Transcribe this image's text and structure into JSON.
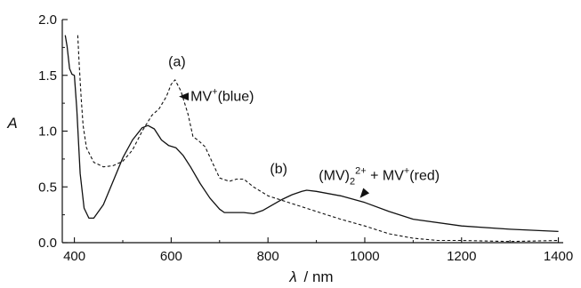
{
  "chart_data": {
    "type": "line",
    "xlabel_symbol": "λ",
    "xlabel_unit": "/ nm",
    "ylabel": "A",
    "xlim": [
      375,
      1410
    ],
    "ylim": [
      0,
      2.0
    ],
    "x_ticks": [
      400,
      600,
      800,
      1000,
      1200,
      1400
    ],
    "y_ticks": [
      0.0,
      0.5,
      1.0,
      1.5,
      2.0
    ],
    "grid": false,
    "series": [
      {
        "key": "b",
        "style": "solid",
        "points": [
          [
            381,
            1.86
          ],
          [
            385,
            1.76
          ],
          [
            390,
            1.56
          ],
          [
            395,
            1.51
          ],
          [
            400,
            1.5
          ],
          [
            405,
            1.2
          ],
          [
            412,
            0.62
          ],
          [
            420,
            0.31
          ],
          [
            430,
            0.22
          ],
          [
            440,
            0.22
          ],
          [
            460,
            0.34
          ],
          [
            480,
            0.55
          ],
          [
            500,
            0.76
          ],
          [
            520,
            0.92
          ],
          [
            540,
            1.03
          ],
          [
            552,
            1.05
          ],
          [
            565,
            1.02
          ],
          [
            580,
            0.92
          ],
          [
            595,
            0.87
          ],
          [
            610,
            0.85
          ],
          [
            625,
            0.78
          ],
          [
            640,
            0.68
          ],
          [
            660,
            0.53
          ],
          [
            680,
            0.4
          ],
          [
            700,
            0.3
          ],
          [
            710,
            0.27
          ],
          [
            730,
            0.27
          ],
          [
            750,
            0.27
          ],
          [
            770,
            0.26
          ],
          [
            790,
            0.29
          ],
          [
            810,
            0.34
          ],
          [
            830,
            0.39
          ],
          [
            850,
            0.43
          ],
          [
            870,
            0.46
          ],
          [
            880,
            0.47
          ],
          [
            900,
            0.46
          ],
          [
            950,
            0.42
          ],
          [
            1000,
            0.36
          ],
          [
            1050,
            0.28
          ],
          [
            1100,
            0.21
          ],
          [
            1200,
            0.15
          ],
          [
            1300,
            0.12
          ],
          [
            1400,
            0.1
          ]
        ]
      },
      {
        "key": "a",
        "style": "dashed",
        "points": [
          [
            407,
            1.86
          ],
          [
            410,
            1.6
          ],
          [
            414,
            1.3
          ],
          [
            418,
            1.05
          ],
          [
            425,
            0.85
          ],
          [
            440,
            0.72
          ],
          [
            460,
            0.68
          ],
          [
            480,
            0.69
          ],
          [
            500,
            0.73
          ],
          [
            520,
            0.83
          ],
          [
            540,
            1.0
          ],
          [
            560,
            1.14
          ],
          [
            575,
            1.2
          ],
          [
            590,
            1.31
          ],
          [
            600,
            1.42
          ],
          [
            608,
            1.46
          ],
          [
            620,
            1.36
          ],
          [
            635,
            1.15
          ],
          [
            645,
            0.95
          ],
          [
            655,
            0.92
          ],
          [
            670,
            0.86
          ],
          [
            685,
            0.72
          ],
          [
            700,
            0.58
          ],
          [
            720,
            0.55
          ],
          [
            735,
            0.57
          ],
          [
            750,
            0.57
          ],
          [
            770,
            0.5
          ],
          [
            800,
            0.42
          ],
          [
            850,
            0.35
          ],
          [
            900,
            0.28
          ],
          [
            950,
            0.21
          ],
          [
            1000,
            0.15
          ],
          [
            1050,
            0.08
          ],
          [
            1100,
            0.04
          ],
          [
            1150,
            0.02
          ],
          [
            1200,
            0.02
          ],
          [
            1300,
            0.01
          ],
          [
            1400,
            0.02
          ]
        ]
      }
    ],
    "annotations": [
      {
        "key": "label-a",
        "text": "(a)",
        "at": [
          612,
          1.58
        ]
      },
      {
        "key": "label-b",
        "text": "(b)",
        "at": [
          822,
          0.62
        ]
      },
      {
        "key": "mv-blue",
        "text_base": "MV",
        "text_sup": "+",
        "text_tail": "(blue)",
        "at": [
          640,
          1.31
        ],
        "arrow_to": [
          616,
          1.31
        ]
      },
      {
        "key": "mv-red",
        "text_base": "(MV)",
        "text_sub": "2",
        "text_sup": "2+",
        "text_tail": " + MV",
        "text_sup2": "+",
        "text_tail2": "(red)",
        "at": [
          905,
          0.6
        ],
        "arrow_to": [
          990,
          0.4
        ]
      }
    ]
  }
}
